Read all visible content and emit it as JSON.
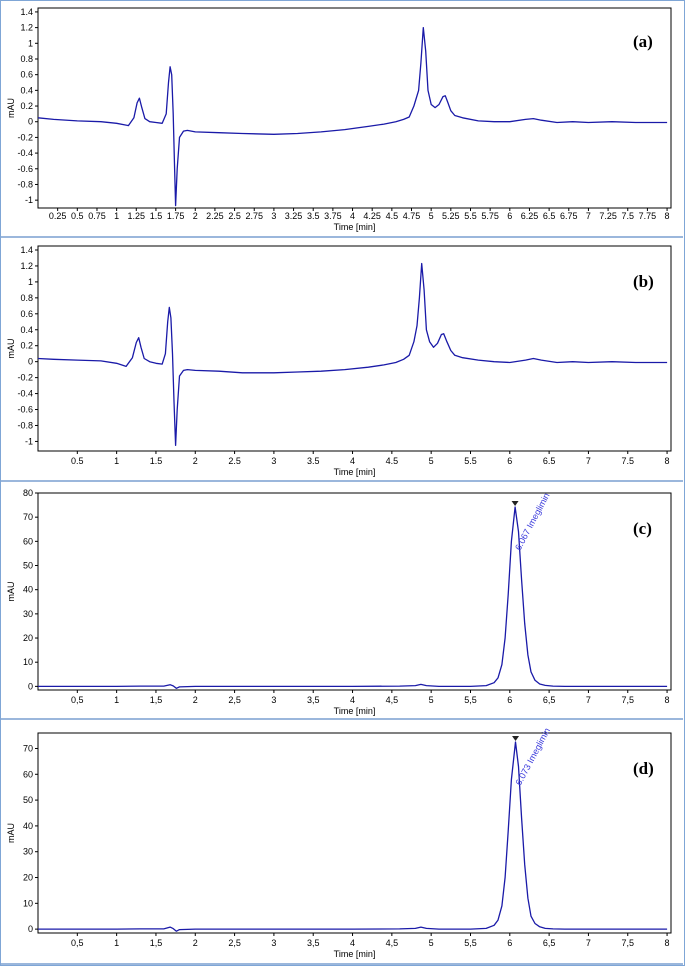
{
  "chart_data": [
    {
      "type": "line",
      "panel_label": "(a)",
      "xlabel": "Time [min]",
      "ylabel": "mAU",
      "xlim": [
        0,
        8.05
      ],
      "ylim": [
        -1.1,
        1.45
      ],
      "xticks": [
        0.25,
        0.5,
        0.75,
        1,
        1.25,
        1.5,
        1.75,
        2,
        2.25,
        2.5,
        2.75,
        3,
        3.25,
        3.5,
        3.75,
        4,
        4.25,
        4.5,
        4.75,
        5,
        5.25,
        5.5,
        5.75,
        6,
        6.25,
        6.5,
        6.75,
        7,
        7.25,
        7.5,
        7.75,
        8
      ],
      "xtick_labels": [
        "0.25",
        "0.5",
        "0.75",
        "1",
        "1.25",
        "1.5",
        "1.75",
        "2",
        "2.25",
        "2.5",
        "2.75",
        "3",
        "3.25",
        "3.5",
        "3.75",
        "4",
        "4.25",
        "4.5",
        "4.75",
        "5",
        "5.25",
        "5.5",
        "5.75",
        "6",
        "6.25",
        "6.5",
        "6.75",
        "7",
        "7.25",
        "7.5",
        "7.75",
        "8"
      ],
      "yticks": [
        -1,
        -0.8,
        -0.6,
        -0.4,
        -0.2,
        0,
        0.2,
        0.4,
        0.6,
        0.8,
        1,
        1.2,
        1.4
      ],
      "ytick_labels": [
        "-1",
        "-0.8",
        "-0.6",
        "-0.4",
        "-0.2",
        "0",
        "0.2",
        "0.4",
        "0.6",
        "0.8",
        "1",
        "1.2",
        "1.4"
      ],
      "series": [
        {
          "color": "#1a1aa8",
          "x": [
            0,
            0.2,
            0.5,
            0.8,
            1.0,
            1.15,
            1.22,
            1.26,
            1.29,
            1.32,
            1.36,
            1.42,
            1.5,
            1.58,
            1.63,
            1.66,
            1.68,
            1.7,
            1.72,
            1.735,
            1.75,
            1.77,
            1.8,
            1.85,
            1.9,
            2.0,
            2.3,
            2.6,
            3.0,
            3.3,
            3.6,
            3.9,
            4.2,
            4.4,
            4.55,
            4.65,
            4.72,
            4.78,
            4.84,
            4.87,
            4.9,
            4.93,
            4.96,
            5.0,
            5.05,
            5.1,
            5.15,
            5.18,
            5.21,
            5.25,
            5.3,
            5.4,
            5.6,
            5.8,
            6.0,
            6.2,
            6.3,
            6.4,
            6.6,
            6.8,
            7.0,
            7.3,
            7.6,
            8.0
          ],
          "y": [
            0.05,
            0.03,
            0.01,
            0.0,
            -0.02,
            -0.05,
            0.05,
            0.24,
            0.3,
            0.18,
            0.04,
            0.0,
            -0.01,
            -0.02,
            0.1,
            0.5,
            0.7,
            0.6,
            0.1,
            -0.5,
            -1.07,
            -0.6,
            -0.2,
            -0.12,
            -0.11,
            -0.13,
            -0.14,
            -0.15,
            -0.16,
            -0.15,
            -0.13,
            -0.1,
            -0.06,
            -0.03,
            0.0,
            0.03,
            0.06,
            0.2,
            0.4,
            0.75,
            1.2,
            0.9,
            0.4,
            0.22,
            0.18,
            0.22,
            0.32,
            0.33,
            0.25,
            0.14,
            0.08,
            0.05,
            0.01,
            0.0,
            0.0,
            0.03,
            0.04,
            0.02,
            -0.01,
            0.0,
            -0.01,
            0.0,
            -0.01,
            -0.01
          ]
        }
      ]
    },
    {
      "type": "line",
      "panel_label": "(b)",
      "xlabel": "Time [min]",
      "ylabel": "mAU",
      "xlim": [
        0,
        8.05
      ],
      "ylim": [
        -1.12,
        1.45
      ],
      "xticks": [
        0.5,
        1,
        1.5,
        2,
        2.5,
        3,
        3.5,
        4,
        4.5,
        5,
        5.5,
        6,
        6.5,
        7,
        7.5,
        8
      ],
      "xtick_labels": [
        "0.5",
        "1",
        "1.5",
        "2",
        "2.5",
        "3",
        "3.5",
        "4",
        "4.5",
        "5",
        "5.5",
        "6",
        "6.5",
        "7",
        "7.5",
        "8"
      ],
      "yticks": [
        -1,
        -0.8,
        -0.6,
        -0.4,
        -0.2,
        0,
        0.2,
        0.4,
        0.6,
        0.8,
        1,
        1.2,
        1.4
      ],
      "ytick_labels": [
        "-1",
        "-0.8",
        "-0.6",
        "-0.4",
        "-0.2",
        "0",
        "0.2",
        "0.4",
        "0.6",
        "0.8",
        "1",
        "1.2",
        "1.4"
      ],
      "series": [
        {
          "color": "#1a1aa8",
          "x": [
            0,
            0.2,
            0.5,
            0.8,
            1.0,
            1.12,
            1.2,
            1.25,
            1.28,
            1.31,
            1.35,
            1.42,
            1.5,
            1.58,
            1.62,
            1.65,
            1.67,
            1.69,
            1.71,
            1.73,
            1.75,
            1.77,
            1.8,
            1.85,
            1.9,
            2.0,
            2.3,
            2.6,
            3.0,
            3.3,
            3.6,
            3.9,
            4.2,
            4.4,
            4.55,
            4.65,
            4.72,
            4.78,
            4.82,
            4.85,
            4.88,
            4.91,
            4.94,
            4.98,
            5.03,
            5.08,
            5.13,
            5.16,
            5.2,
            5.25,
            5.3,
            5.4,
            5.6,
            5.8,
            6.0,
            6.2,
            6.3,
            6.4,
            6.6,
            6.8,
            7.0,
            7.3,
            7.6,
            8.0
          ],
          "y": [
            0.04,
            0.03,
            0.02,
            0.01,
            -0.02,
            -0.06,
            0.05,
            0.24,
            0.3,
            0.18,
            0.04,
            0.0,
            -0.02,
            -0.03,
            0.1,
            0.5,
            0.68,
            0.55,
            0.1,
            -0.5,
            -1.05,
            -0.6,
            -0.18,
            -0.11,
            -0.1,
            -0.11,
            -0.12,
            -0.14,
            -0.14,
            -0.13,
            -0.12,
            -0.1,
            -0.07,
            -0.04,
            -0.01,
            0.03,
            0.08,
            0.25,
            0.45,
            0.8,
            1.23,
            0.9,
            0.4,
            0.25,
            0.18,
            0.23,
            0.34,
            0.35,
            0.25,
            0.14,
            0.08,
            0.05,
            0.02,
            0.0,
            -0.01,
            0.02,
            0.04,
            0.02,
            -0.01,
            0.0,
            -0.01,
            0.0,
            -0.01,
            -0.01
          ]
        }
      ]
    },
    {
      "type": "line",
      "panel_label": "(c)",
      "xlabel": "Time [min]",
      "ylabel": "mAU",
      "xlim": [
        0,
        8.05
      ],
      "ylim": [
        -1.5,
        80
      ],
      "xticks": [
        0.5,
        1,
        1.5,
        2,
        2.5,
        3,
        3.5,
        4,
        4.5,
        5,
        5.5,
        6,
        6.5,
        7,
        7.5,
        8
      ],
      "xtick_labels": [
        "0,5",
        "1",
        "1,5",
        "2",
        "2,5",
        "3",
        "3,5",
        "4",
        "4,5",
        "5",
        "5,5",
        "6",
        "6,5",
        "7",
        "7,5",
        "8"
      ],
      "yticks": [
        0,
        10,
        20,
        30,
        40,
        50,
        60,
        70,
        80
      ],
      "ytick_labels": [
        "0",
        "10",
        "20",
        "30",
        "40",
        "50",
        "60",
        "70",
        "80"
      ],
      "peak": {
        "x": 6.067,
        "y": 74.2,
        "label": "6.067 Imeglimin"
      },
      "series": [
        {
          "color": "#1a1aa8",
          "x": [
            0,
            0.5,
            1.0,
            1.3,
            1.6,
            1.68,
            1.72,
            1.76,
            1.8,
            2.0,
            3.0,
            4.0,
            4.6,
            4.8,
            4.87,
            4.94,
            5.1,
            5.5,
            5.7,
            5.8,
            5.85,
            5.9,
            5.94,
            5.98,
            6.02,
            6.067,
            6.11,
            6.15,
            6.19,
            6.23,
            6.27,
            6.32,
            6.38,
            6.45,
            6.55,
            6.7,
            7.0,
            8.0
          ],
          "y": [
            0,
            0,
            0,
            0.1,
            0.1,
            0.7,
            0.2,
            -0.8,
            -0.2,
            0,
            0,
            0,
            0.1,
            0.3,
            0.8,
            0.3,
            0,
            0,
            0.3,
            1.5,
            3.5,
            9,
            20,
            38,
            60,
            74.2,
            64,
            44,
            26,
            13,
            6,
            2.5,
            1,
            0.4,
            0.1,
            0,
            0,
            0
          ]
        }
      ]
    },
    {
      "type": "line",
      "panel_label": "(d)",
      "xlabel": "Time [min]",
      "ylabel": "mAU",
      "xlim": [
        0,
        8.05
      ],
      "ylim": [
        -1.5,
        76
      ],
      "xticks": [
        0.5,
        1,
        1.5,
        2,
        2.5,
        3,
        3.5,
        4,
        4.5,
        5,
        5.5,
        6,
        6.5,
        7,
        7.5,
        8
      ],
      "xtick_labels": [
        "0,5",
        "1",
        "1,5",
        "2",
        "2,5",
        "3",
        "3,5",
        "4",
        "4,5",
        "5",
        "5,5",
        "6",
        "6,5",
        "7",
        "7,5",
        "8"
      ],
      "yticks": [
        0,
        10,
        20,
        30,
        40,
        50,
        60,
        70
      ],
      "ytick_labels": [
        "0",
        "10",
        "20",
        "30",
        "40",
        "50",
        "60",
        "70"
      ],
      "peak": {
        "x": 6.073,
        "y": 72.5,
        "label": "6.073 Imeglimin"
      },
      "series": [
        {
          "color": "#1a1aa8",
          "x": [
            0,
            0.5,
            1.0,
            1.3,
            1.6,
            1.68,
            1.72,
            1.76,
            1.8,
            2.0,
            3.0,
            4.0,
            4.6,
            4.8,
            4.87,
            4.94,
            5.1,
            5.5,
            5.7,
            5.8,
            5.85,
            5.9,
            5.94,
            5.98,
            6.02,
            6.073,
            6.11,
            6.15,
            6.19,
            6.23,
            6.27,
            6.32,
            6.38,
            6.45,
            6.55,
            6.7,
            7.0,
            8.0
          ],
          "y": [
            0,
            0,
            0,
            0.1,
            0.1,
            0.8,
            0.2,
            -0.8,
            -0.2,
            0,
            0,
            0,
            0.1,
            0.3,
            0.8,
            0.3,
            0,
            0,
            0.3,
            1.5,
            3.5,
            9,
            20,
            38,
            58,
            72.5,
            63,
            43,
            25,
            12,
            5,
            2.2,
            0.9,
            0.3,
            0.1,
            0,
            0,
            0
          ]
        }
      ]
    }
  ]
}
